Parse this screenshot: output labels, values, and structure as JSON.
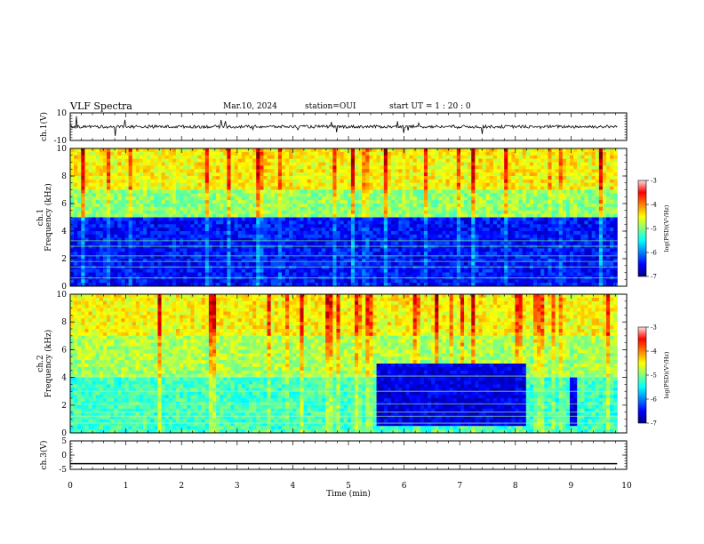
{
  "header": {
    "title": "VLF Spectra",
    "date": "Mar.10, 2024",
    "station": "station=OUI",
    "start": "start  UT =   1 : 20 : 0"
  },
  "colors": {
    "spectrum": [
      "#00007f",
      "#0000ff",
      "#007fff",
      "#00ffff",
      "#7fff7f",
      "#ffff00",
      "#ff7f00",
      "#ff0000",
      "#7f0000"
    ]
  },
  "chart_data": [
    {
      "type": "line",
      "panel": "ch1-waveform",
      "ylabel": "ch.1(V)",
      "ylim": [
        -10,
        10
      ],
      "yticks": [
        10,
        -10
      ],
      "x": [
        0,
        10
      ],
      "description_level": 0,
      "values": [
        0,
        0
      ]
    },
    {
      "type": "heatmap",
      "panel": "ch1-spectrogram",
      "ylabel": "ch.1\nFrequency (kHz)",
      "ylim": [
        0,
        10
      ],
      "yticks": [
        0,
        2,
        4,
        6,
        8,
        10
      ],
      "xlim": [
        0,
        10
      ],
      "colorbar": {
        "label": "log(PSD)(V²/Hz)",
        "range": [
          -7,
          -3
        ],
        "ticks": [
          -3,
          -4,
          -5,
          -6,
          -7
        ]
      },
      "bands": [
        {
          "f": [
            0,
            5
          ],
          "level": -6.5
        },
        {
          "f": [
            5,
            7
          ],
          "level": -5.0
        },
        {
          "f": [
            7,
            10
          ],
          "level": -4.6
        }
      ]
    },
    {
      "type": "heatmap",
      "panel": "ch2-spectrogram",
      "ylabel": "ch.2\nFrequency (kHz)",
      "ylim": [
        0,
        10
      ],
      "yticks": [
        0,
        2,
        4,
        6,
        8,
        10
      ],
      "xlim": [
        0,
        10
      ],
      "colorbar": {
        "label": "log(PSD)(V²/Hz)",
        "range": [
          -7,
          -3
        ],
        "ticks": [
          -3,
          -4,
          -5,
          -6,
          -7
        ]
      },
      "bands": [
        {
          "f": [
            0,
            4
          ],
          "level": -5.3
        },
        {
          "f": [
            4,
            7
          ],
          "level": -4.9
        },
        {
          "f": [
            7,
            10
          ],
          "level": -4.6
        }
      ],
      "quiet_intervals": [
        {
          "t": [
            5.5,
            8.2
          ],
          "f": [
            0.5,
            5
          ]
        },
        {
          "t": [
            9.0,
            9.1
          ],
          "f": [
            0.5,
            4
          ]
        }
      ]
    },
    {
      "type": "line",
      "panel": "ch3-waveform",
      "ylabel": "ch.3(V)",
      "ylim": [
        -5,
        5
      ],
      "yticks": [
        5,
        0,
        -5
      ],
      "x": [
        0,
        10
      ],
      "values": [
        -3,
        -3
      ]
    }
  ],
  "xaxis": {
    "label": "Time (min)",
    "ticks": [
      0,
      1,
      2,
      3,
      4,
      5,
      6,
      7,
      8,
      9,
      10
    ],
    "tick_labels": [
      "0",
      "1",
      "2",
      "3",
      "4",
      "5",
      "6",
      "7",
      "8",
      "9",
      "10"
    ],
    "data_end": 9.83
  }
}
